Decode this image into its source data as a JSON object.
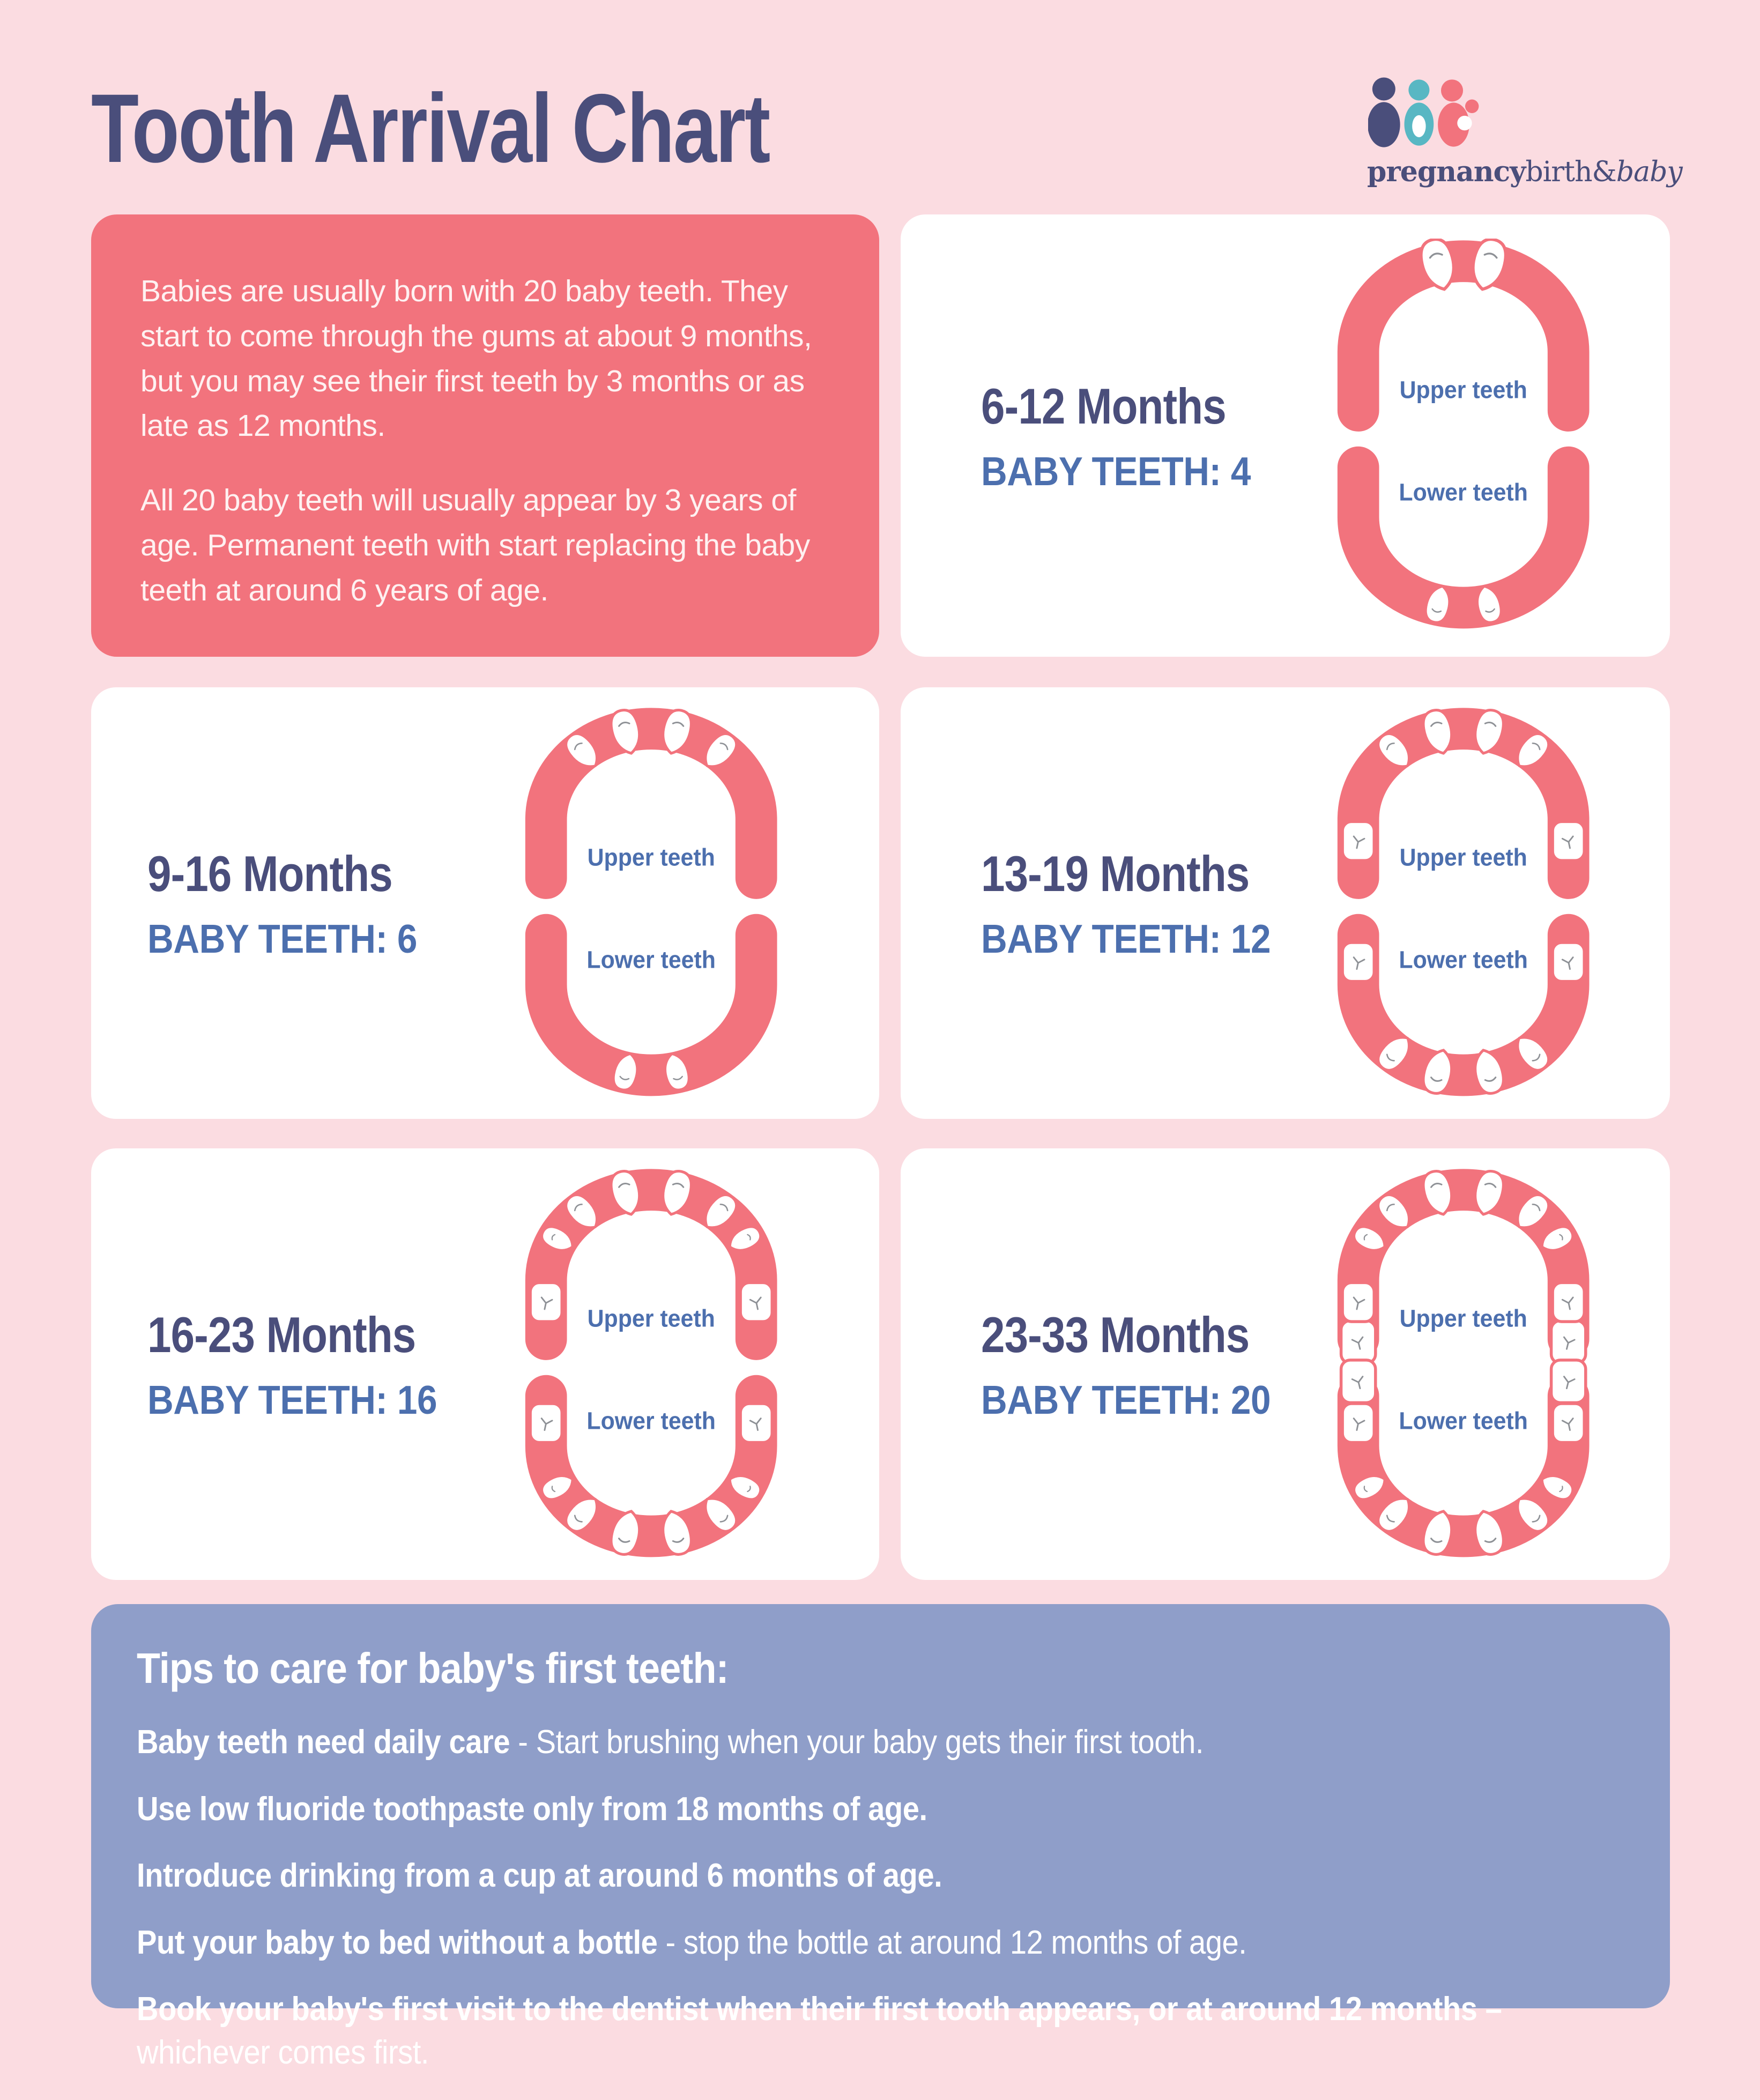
{
  "colors": {
    "background": "#FBDCE1",
    "card_bg": "#FFFFFF",
    "accent_coral": "#F2737D",
    "title_navy": "#4A4E7B",
    "steel_blue": "#4C6FAE",
    "tips_bg": "#8F9EC9",
    "tips_text": "#FFFFFF",
    "crack_gray": "#8E9196",
    "logo_teal": "#58B7C3"
  },
  "header": {
    "title": "Tooth Arrival Chart",
    "logo": {
      "word_bold": "pregnancy",
      "word_regular": "birth&",
      "word_italic": "baby"
    }
  },
  "intro": {
    "p1": "Babies are usually born with 20 baby teeth. They start to come through the gums at about 9 months, but you may see their first teeth by 3 months or as late as 12 months.",
    "p2": "All 20 baby teeth will usually appear by 3 years of age. Permanent teeth with start replacing the baby teeth at around 6 years of age."
  },
  "cards": [
    {
      "months": "6-12 Months",
      "baby_teeth": "BABY TEETH: 4",
      "upper_label": "Upper teeth",
      "lower_label": "Lower teeth",
      "teeth": {
        "upper": {
          "central_incisors": true,
          "lateral_incisors": false,
          "canines": false,
          "first_molars": false,
          "second_molars": false
        },
        "lower": {
          "central_incisors": true,
          "lateral_incisors": false,
          "canines": false,
          "first_molars": false,
          "second_molars": false
        }
      }
    },
    {
      "months": "9-16 Months",
      "baby_teeth": "BABY TEETH: 6",
      "upper_label": "Upper teeth",
      "lower_label": "Lower teeth",
      "teeth": {
        "upper": {
          "central_incisors": true,
          "lateral_incisors": true,
          "canines": false,
          "first_molars": false,
          "second_molars": false
        },
        "lower": {
          "central_incisors": true,
          "lateral_incisors": false,
          "canines": false,
          "first_molars": false,
          "second_molars": false
        }
      }
    },
    {
      "months": "13-19 Months",
      "baby_teeth": "BABY TEETH: 12",
      "upper_label": "Upper teeth",
      "lower_label": "Lower teeth",
      "teeth": {
        "upper": {
          "central_incisors": true,
          "lateral_incisors": true,
          "canines": false,
          "first_molars": true,
          "second_molars": false
        },
        "lower": {
          "central_incisors": true,
          "lateral_incisors": true,
          "canines": false,
          "first_molars": true,
          "second_molars": false
        }
      }
    },
    {
      "months": "16-23 Months",
      "baby_teeth": "BABY TEETH: 16",
      "upper_label": "Upper teeth",
      "lower_label": "Lower teeth",
      "teeth": {
        "upper": {
          "central_incisors": true,
          "lateral_incisors": true,
          "canines": true,
          "first_molars": true,
          "second_molars": false
        },
        "lower": {
          "central_incisors": true,
          "lateral_incisors": true,
          "canines": true,
          "first_molars": true,
          "second_molars": false
        }
      }
    },
    {
      "months": "23-33 Months",
      "baby_teeth": "BABY TEETH: 20",
      "upper_label": "Upper teeth",
      "lower_label": "Lower teeth",
      "teeth": {
        "upper": {
          "central_incisors": true,
          "lateral_incisors": true,
          "canines": true,
          "first_molars": true,
          "second_molars": true
        },
        "lower": {
          "central_incisors": true,
          "lateral_incisors": true,
          "canines": true,
          "first_molars": true,
          "second_molars": true
        }
      }
    }
  ],
  "tips": {
    "title": "Tips to care for baby's first teeth:",
    "items": [
      {
        "bold": "Baby teeth need daily care",
        "regular": " - Start brushing when your baby gets their first tooth."
      },
      {
        "bold": "Use low fluoride toothpaste only from 18 months of age.",
        "regular": ""
      },
      {
        "bold": "Introduce drinking from a cup at around 6 months of age.",
        "regular": ""
      },
      {
        "bold": "Put your baby to bed without a bottle",
        "regular": " - stop the bottle at around 12 months of age."
      },
      {
        "bold": "Book your baby's first visit to the dentist when their first tooth appears, or at around 12 months –",
        "regular": " whichever comes first."
      }
    ]
  }
}
